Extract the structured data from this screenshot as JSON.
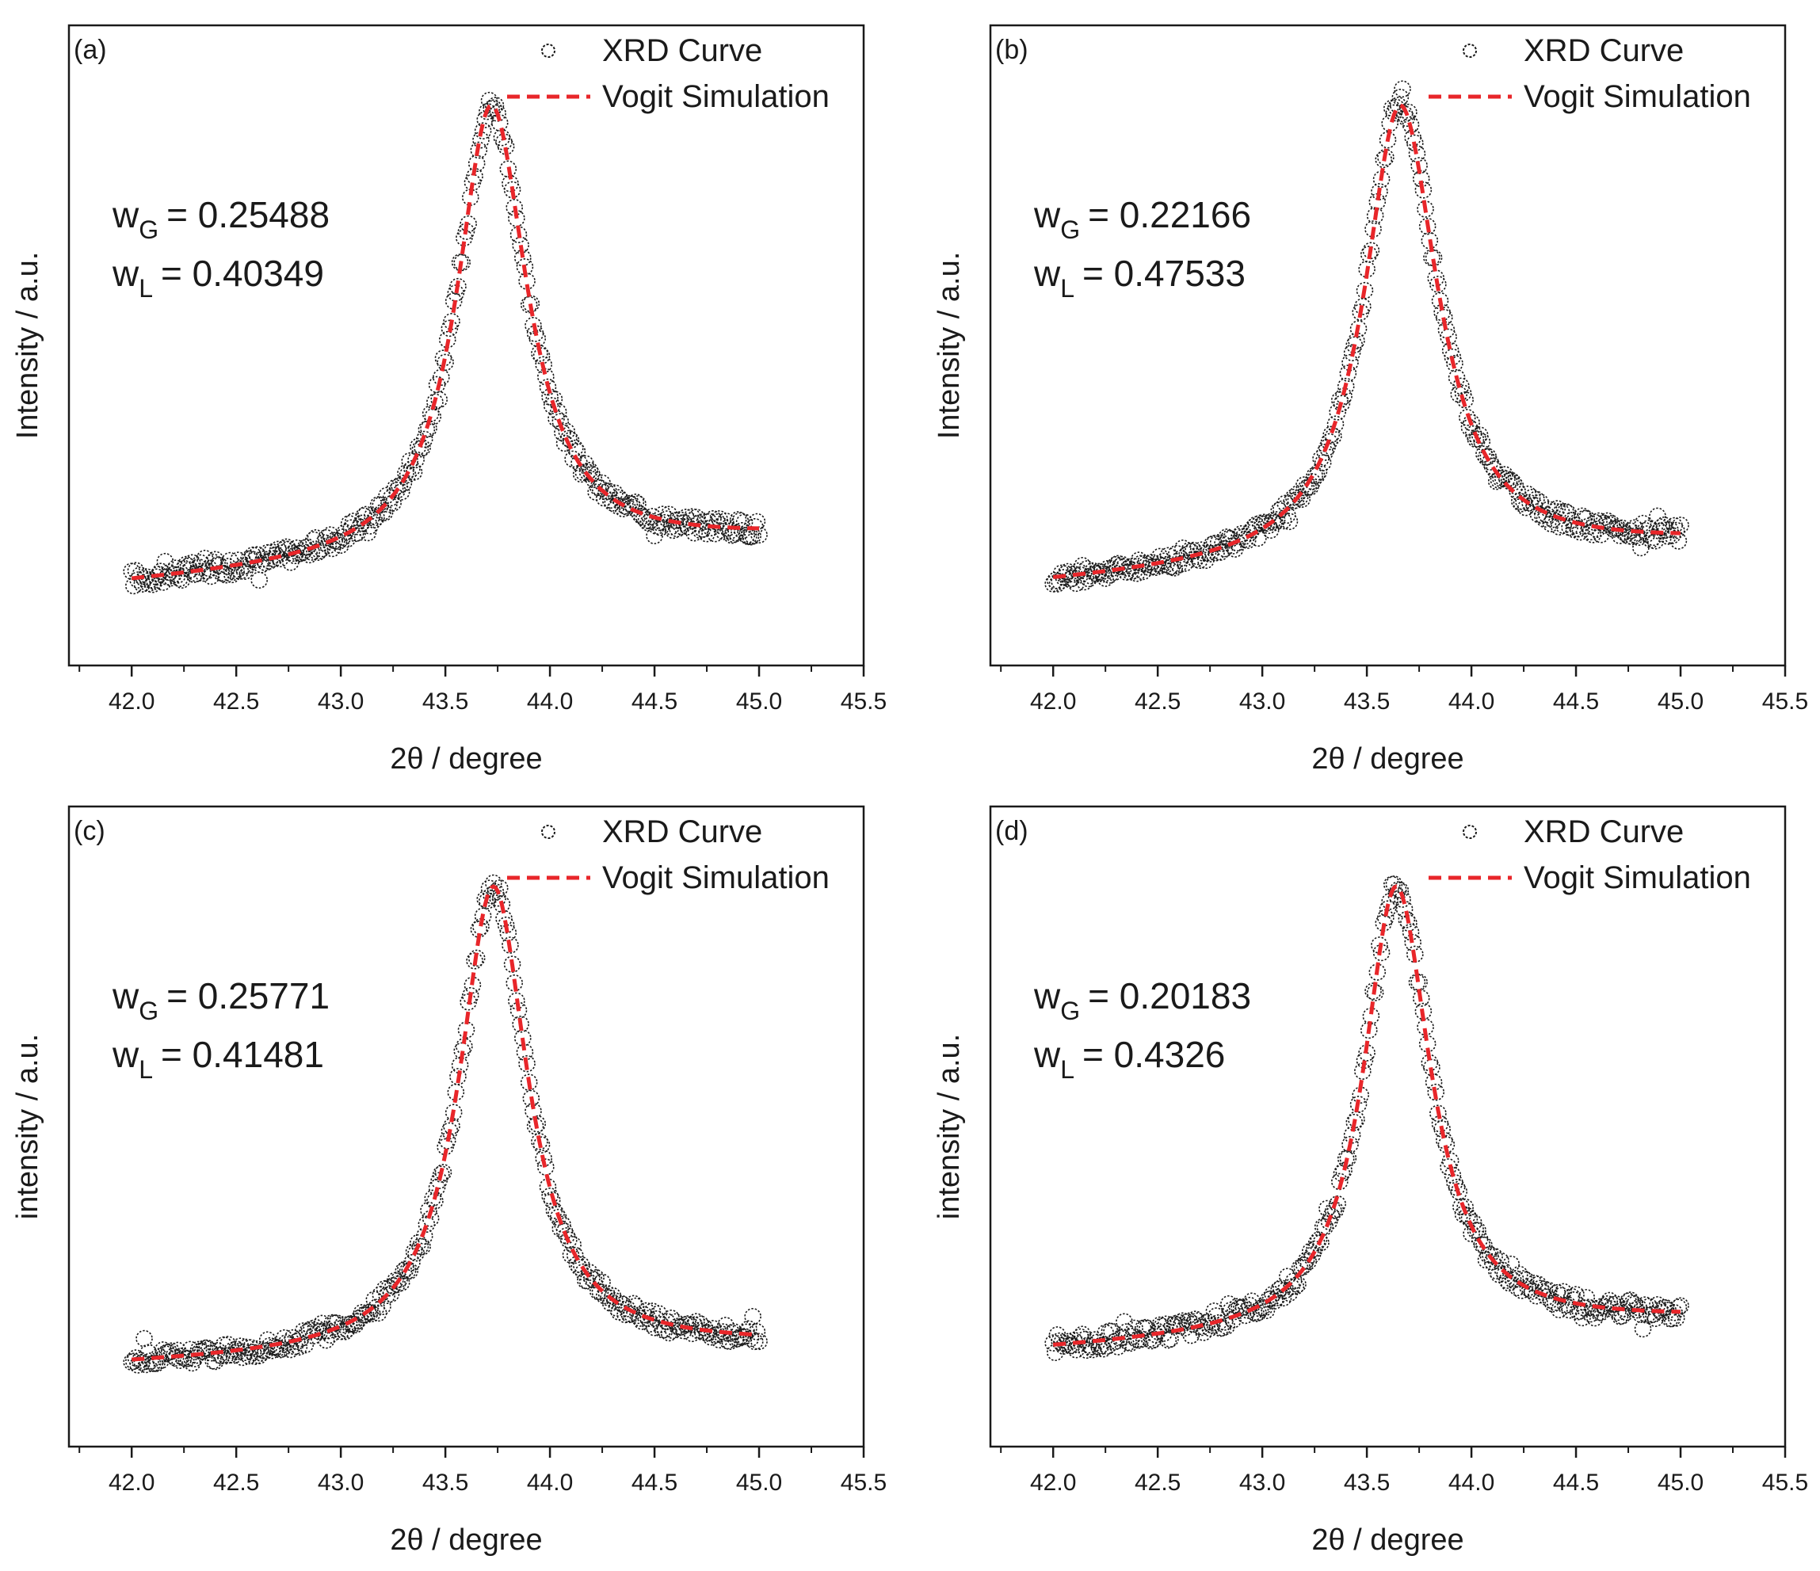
{
  "figure": {
    "legend_markers": {
      "data": "circle",
      "fit": "dashed-red"
    }
  },
  "chart_data": [
    {
      "type": "scatter",
      "panel_label": "(a)",
      "xlabel": "2θ / degree",
      "ylabel": "Intensity / a.u.",
      "xlim": [
        41.7,
        45.5
      ],
      "ylim": [
        0,
        1.18
      ],
      "x_ticks": [
        "42.0",
        "42.5",
        "43.0",
        "43.5",
        "44.0",
        "44.5",
        "45.0",
        "45.5"
      ],
      "legend": {
        "position": "top-right",
        "entries": [
          "XRD Curve",
          "Vogit Simulation"
        ]
      },
      "annotations": [
        {
          "symbol": "w",
          "subscript": "G",
          "value": "= 0.25488"
        },
        {
          "symbol": "w",
          "subscript": "L",
          "value": "= 0.40349"
        }
      ],
      "peak": {
        "center": 43.72,
        "height": 1.0,
        "baseline_start": 0.04,
        "baseline_end": 0.13,
        "gamma_left": 0.2,
        "gamma_right": 0.21,
        "noise": 0.018
      },
      "colors": {
        "data": "#1a1a1a",
        "fit": "#e8262a"
      }
    },
    {
      "type": "scatter",
      "panel_label": "(b)",
      "xlabel": "2θ / degree",
      "ylabel": "Intensity / a.u.",
      "xlim": [
        41.7,
        45.5
      ],
      "ylim": [
        0,
        1.18
      ],
      "x_ticks": [
        "42.0",
        "42.5",
        "43.0",
        "43.5",
        "44.0",
        "44.5",
        "45.0",
        "45.5"
      ],
      "legend": {
        "position": "top-right",
        "entries": [
          "XRD Curve",
          "Vogit Simulation"
        ]
      },
      "annotations": [
        {
          "symbol": "w",
          "subscript": "G",
          "value": "= 0.22166"
        },
        {
          "symbol": "w",
          "subscript": "L",
          "value": "= 0.47533"
        }
      ],
      "peak": {
        "center": 43.66,
        "height": 1.0,
        "baseline_start": 0.04,
        "baseline_end": 0.12,
        "gamma_left": 0.21,
        "gamma_right": 0.22,
        "noise": 0.018
      },
      "colors": {
        "data": "#1a1a1a",
        "fit": "#e8262a"
      }
    },
    {
      "type": "scatter",
      "panel_label": "(c)",
      "xlabel": "2θ / degree",
      "ylabel": "intensity / a.u.",
      "xlim": [
        41.7,
        45.5
      ],
      "ylim": [
        0,
        1.18
      ],
      "x_ticks": [
        "42.0",
        "42.5",
        "43.0",
        "43.5",
        "44.0",
        "44.5",
        "45.0",
        "45.5"
      ],
      "legend": {
        "position": "top-right",
        "entries": [
          "XRD Curve",
          "Vogit Simulation"
        ]
      },
      "annotations": [
        {
          "symbol": "w",
          "subscript": "G",
          "value": "= 0.25771"
        },
        {
          "symbol": "w",
          "subscript": "L",
          "value": "= 0.41481"
        }
      ],
      "peak": {
        "center": 43.73,
        "height": 1.0,
        "baseline_start": 0.04,
        "baseline_end": 0.08,
        "gamma_left": 0.2,
        "gamma_right": 0.2,
        "noise": 0.018
      },
      "colors": {
        "data": "#1a1a1a",
        "fit": "#e8262a"
      }
    },
    {
      "type": "scatter",
      "panel_label": "(d)",
      "xlabel": "2θ / degree",
      "ylabel": "intensity / a.u.",
      "xlim": [
        41.7,
        45.5
      ],
      "ylim": [
        0,
        1.18
      ],
      "x_ticks": [
        "42.0",
        "42.5",
        "43.0",
        "43.5",
        "44.0",
        "44.5",
        "45.0",
        "45.5"
      ],
      "legend": {
        "position": "top-right",
        "entries": [
          "XRD Curve",
          "Vogit Simulation"
        ]
      },
      "annotations": [
        {
          "symbol": "w",
          "subscript": "G",
          "value": "= 0.20183"
        },
        {
          "symbol": "w",
          "subscript": "L",
          "value": "= 0.4326"
        }
      ],
      "peak": {
        "center": 43.64,
        "height": 1.0,
        "baseline_start": 0.07,
        "baseline_end": 0.13,
        "gamma_left": 0.19,
        "gamma_right": 0.2,
        "noise": 0.018
      },
      "colors": {
        "data": "#1a1a1a",
        "fit": "#e8262a"
      }
    }
  ]
}
